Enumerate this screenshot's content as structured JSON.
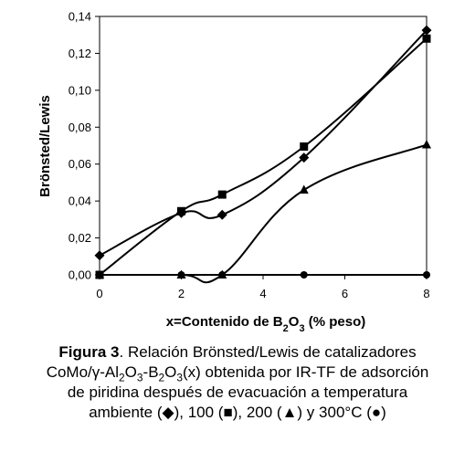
{
  "chart_data": {
    "type": "line",
    "xlabel": "x=Contenido de B2O3 (% peso)",
    "ylabel": "Brönsted/Lewis",
    "xlim": [
      0,
      8
    ],
    "ylim": [
      0,
      0.14
    ],
    "x_ticks": [
      "0",
      "2",
      "4",
      "6",
      "8"
    ],
    "y_ticks": [
      "0,00",
      "0,02",
      "0,04",
      "0,06",
      "0,08",
      "0,10",
      "0,12",
      "0,14"
    ],
    "grid": false,
    "legend": "caption",
    "series": [
      {
        "marker": "diamond",
        "x": [
          0,
          2,
          3,
          5,
          8
        ],
        "y": [
          0.0105,
          0.0335,
          0.0325,
          0.0635,
          0.1325
        ]
      },
      {
        "marker": "square",
        "x": [
          0,
          2,
          3,
          5,
          8
        ],
        "y": [
          0.0,
          0.0345,
          0.0435,
          0.0695,
          0.128
        ]
      },
      {
        "marker": "triangle",
        "x": [
          0,
          2,
          3,
          5,
          8
        ],
        "y": [
          0.0,
          0.0,
          0.0,
          0.046,
          0.0705
        ]
      },
      {
        "marker": "circle",
        "x": [
          0,
          2,
          3,
          5,
          8
        ],
        "y": [
          0.0,
          0.0,
          0.0,
          0.0,
          0.0
        ]
      }
    ]
  },
  "caption": {
    "label": "Figura 3",
    "line1": ". Relación Brönsted/Lewis de catalizadores",
    "line2_a": "CoMo/γ-Al",
    "line2_b": "2",
    "line2_c": "O",
    "line2_d": "3",
    "line2_e": "-B",
    "line2_f": "2",
    "line2_g": "O",
    "line2_h": "3",
    "line2_i": "(x) obtenida por IR-TF de adsorción",
    "line3": "de piridina después de evacuación a temperatura",
    "line4_a": "ambiente (",
    "line4_s1": "◆",
    "line4_b": "), 100 (",
    "line4_s2": "■",
    "line4_c": "), 200 (",
    "line4_s3": "▲",
    "line4_d": ") y 300°C (",
    "line4_s4": "●",
    "line4_e": ")"
  }
}
